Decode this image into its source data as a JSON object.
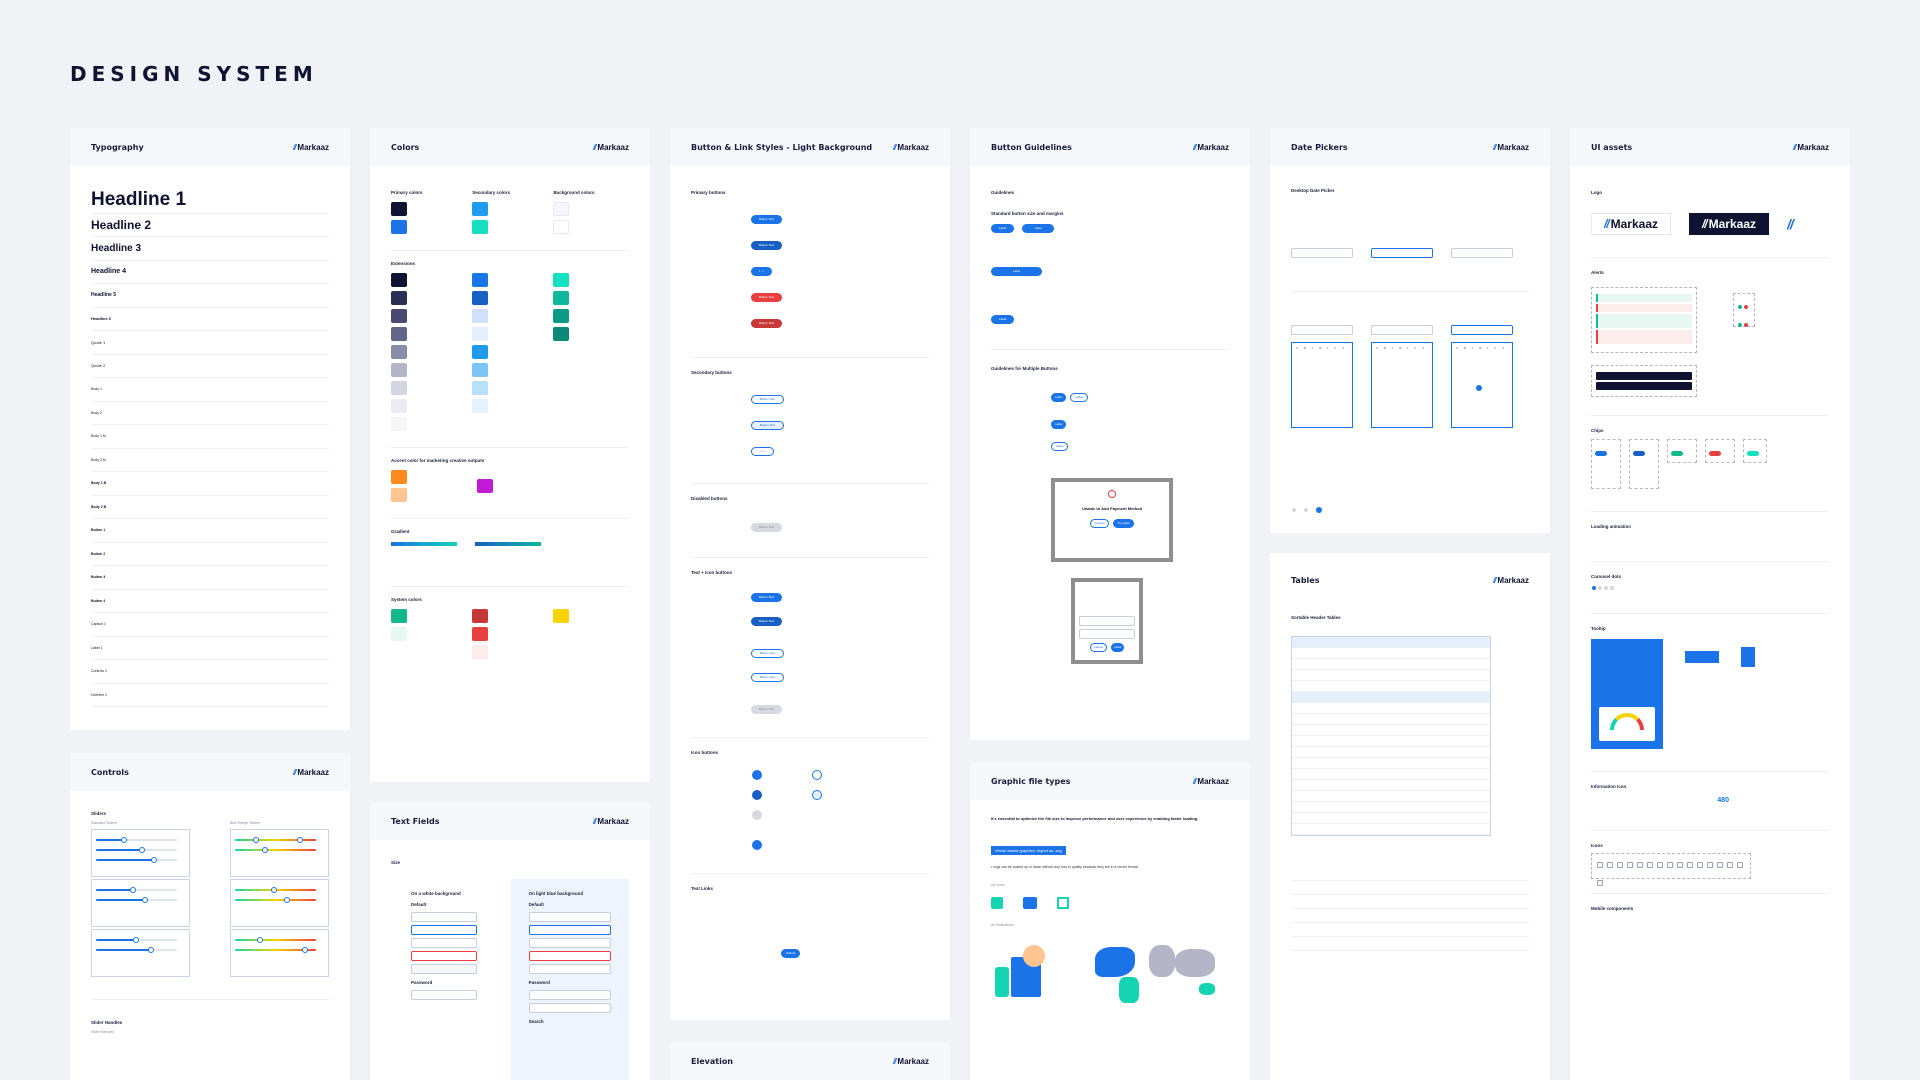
{
  "page": {
    "title": "DESIGN SYSTEM"
  },
  "brand": {
    "name": "Markaaz",
    "mark": "//"
  },
  "colors_accent": {
    "primary": "#1b73e8",
    "navy": "#0f1230",
    "teal": "#14d4b2",
    "red": "#e84040",
    "orange": "#ff8a1f",
    "purple": "#c21bd6",
    "yellow": "#f5d400"
  },
  "cards": {
    "typography": {
      "title": "Typography",
      "headline1": "Headline 1",
      "headline2": "Headline 2",
      "headline3": "Headline 3",
      "headline4": "Headline 4",
      "headline5": "Headline 5",
      "headline6": "Headline 6",
      "quote1": "Quote 1",
      "quote2": "Quote 2",
      "body1": "Body 1",
      "body2": "Body 2",
      "body1m": "Body 1 M",
      "body2m": "Body 2 M",
      "body1b": "Body 1 B",
      "body2b": "Body 2 B",
      "button1": "Button 1",
      "button2": "Button 2",
      "button3": "Button 3",
      "button4": "Button 4",
      "caption1": "Caption 1",
      "label1": "Label 1",
      "controls1": "Controls 1",
      "overline": "Overline 1"
    },
    "colors": {
      "title": "Colors",
      "primary": "Primary colors",
      "secondary": "Secondary colors",
      "background": "Background colors",
      "extensions": "Extensions",
      "accent": "Accent color for marketing creative outputs",
      "gradient": "Gradient",
      "system": "System colors"
    },
    "buttons": {
      "title": "Button & Link Styles - Light Background",
      "primary": "Primary buttons",
      "secondary": "Secondary buttons",
      "disabled": "Disabled buttons",
      "text_icon": "Text + Icon buttons",
      "icon_buttons": "Icon buttons",
      "text_links": "Text Links",
      "button_text": "Button Text",
      "submit": "Submit"
    },
    "guidelines": {
      "title": "Button Guidelines",
      "guidelines": "Guidelines",
      "standard": "Standard button size and margins",
      "multiple": "Guidelines for Multiple Buttons",
      "modal_title": "Unable to Add Payment Method",
      "cancel": "Cancel",
      "try_again": "Try Again",
      "label": "Label"
    },
    "date_pickers": {
      "title": "Date Pickers",
      "desktop": "Desktop Date Picker"
    },
    "ui_assets": {
      "title": "UI assets",
      "logo": "Logo",
      "alerts": "Alerts",
      "chips": "Chips",
      "loading": "Loading animation",
      "carousel": "Carousel dots",
      "tooltip": "Tooltip",
      "info_icon": "Information Icon",
      "icons": "Icons",
      "mobile": "Mobile components",
      "gauge_value": "480"
    },
    "controls": {
      "title": "Controls",
      "sliders": "Sliders",
      "standard": "Standard Sliders",
      "range": "Blue Range Sliders",
      "handles": "Slider Handles",
      "handles_sub": "Slider Handles"
    },
    "text_fields": {
      "title": "Text Fields",
      "size": "Size",
      "white_bg": "On a white background",
      "blue_bg": "On light blue background",
      "default": "Default",
      "password": "Password",
      "search": "Search"
    },
    "elevation": {
      "title": "Elevation"
    },
    "graphic": {
      "title": "Graphic file types",
      "intro": "It's essential to optimize the file size to improve performance and user experience by enabling faster loading.",
      "vector_tag": "Vector based graphics: export as .svg",
      "vector_note": "• svgs can be scaled up or down without any loss in quality because they are in a vector format",
      "icons": "(a) Icons",
      "illustrations": "(b) Illustrations"
    },
    "tables": {
      "title": "Tables",
      "sortable": "Sortable Header Tables"
    }
  }
}
